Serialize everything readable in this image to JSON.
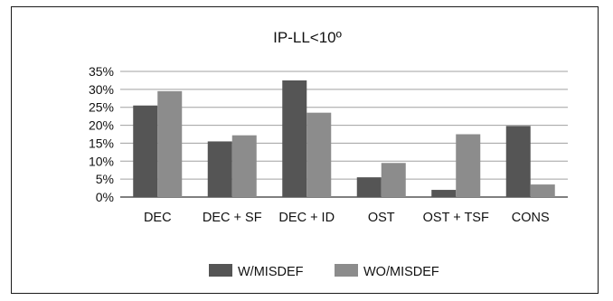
{
  "chart_data": {
    "type": "bar",
    "title": "IP-LL<10º",
    "xlabel": "",
    "ylabel": "",
    "categories": [
      "DEC",
      "DEC + SF",
      "DEC + ID",
      "OST",
      "OST + TSF",
      "CONS"
    ],
    "series": [
      {
        "name": "W/MISDEF",
        "color": "#555555",
        "values": [
          25.5,
          15.5,
          32.5,
          5.5,
          2.0,
          19.8
        ]
      },
      {
        "name": "WO/MISDEF",
        "color": "#8c8c8c",
        "values": [
          29.5,
          17.2,
          23.5,
          9.5,
          17.5,
          3.5
        ]
      }
    ],
    "ylim": [
      0,
      35
    ],
    "yticks": [
      "0%",
      "5%",
      "10%",
      "15%",
      "20%",
      "25%",
      "30%",
      "35%"
    ],
    "ytick_values": [
      0,
      5,
      10,
      15,
      20,
      25,
      30,
      35
    ],
    "grid": true,
    "legend_position": "bottom-center"
  }
}
